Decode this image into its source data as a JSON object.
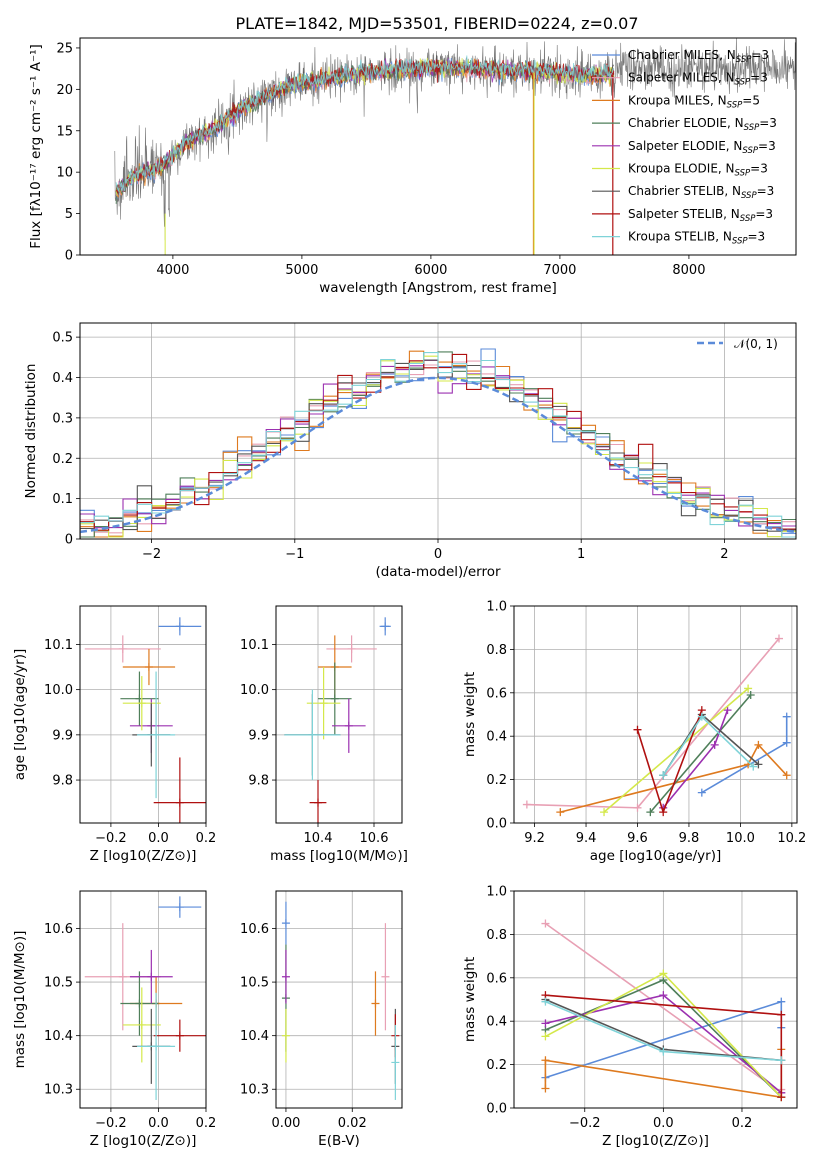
{
  "figure_title": "PLATE=1842, MJD=53501, FIBERID=0224, z=0.07",
  "models": [
    {
      "name": "Chabrier MILES, N$_{SSP}$=3",
      "label": "Chabrier MILES, N",
      "sub": "SSP",
      "suffix": "=3",
      "color": "#5b8bd9"
    },
    {
      "name": "Salpeter MILES",
      "label": "Salpeter MILES, N",
      "sub": "SSP",
      "suffix": "=3",
      "color": "#e8a0b4"
    },
    {
      "name": "Kroupa MILES",
      "label": "Kroupa MILES, N",
      "sub": "SSP",
      "suffix": "=5",
      "color": "#de7a1f"
    },
    {
      "name": "Chabrier ELODIE",
      "label": "Chabrier ELODIE, N",
      "sub": "SSP",
      "suffix": "=3",
      "color": "#4f7f5a"
    },
    {
      "name": "Salpeter ELODIE",
      "label": "Salpeter ELODIE, N",
      "sub": "SSP",
      "suffix": "=3",
      "color": "#9b30b0"
    },
    {
      "name": "Kroupa ELODIE",
      "label": "Kroupa ELODIE, N",
      "sub": "SSP",
      "suffix": "=3",
      "color": "#d4e84a"
    },
    {
      "name": "Chabrier STELIB",
      "label": "Chabrier STELIB, N",
      "sub": "SSP",
      "suffix": "=3",
      "color": "#555555"
    },
    {
      "name": "Salpeter STELIB",
      "label": "Salpeter STELIB, N",
      "sub": "SSP",
      "suffix": "=3",
      "color": "#b01010"
    },
    {
      "name": "Kroupa STELIB",
      "label": "Kroupa STELIB, N",
      "sub": "SSP",
      "suffix": "=3",
      "color": "#7fd3d8"
    }
  ],
  "chart_data": [
    {
      "type": "line",
      "id": "spectrum",
      "title": "PLATE=1842, MJD=53501, FIBERID=0224, z=0.07",
      "xlabel": "wavelength [Angstrom, rest frame]",
      "ylabel": "Flux [fλ10⁻¹⁷ erg cm⁻² s⁻¹ A⁻¹]",
      "xlim": [
        3280,
        8830
      ],
      "ylim": [
        0,
        26.2
      ],
      "xticks": [
        4000,
        5000,
        6000,
        7000,
        8000
      ],
      "yticks": [
        0,
        5,
        10,
        15,
        20,
        25
      ],
      "grid": false,
      "legend_position": "top-right",
      "continuum_x": [
        3550,
        3700,
        3900,
        4100,
        4300,
        4500,
        4700,
        4900,
        5100,
        5300,
        5500,
        5700,
        5900,
        6100,
        6300,
        6500,
        6700,
        6900,
        7100,
        7300,
        7500
      ],
      "continuum_y": [
        7.5,
        9.5,
        10.5,
        13.5,
        15,
        17.5,
        19,
        20.5,
        21,
        21.5,
        22,
        22.3,
        22.5,
        22.6,
        22.5,
        22.3,
        22.2,
        22.1,
        21.8,
        21.6,
        22.5
      ],
      "data_xrange": [
        3550,
        8830
      ]
    },
    {
      "type": "bar",
      "id": "residuals",
      "xlabel": "(data-model)/error",
      "ylabel": "Normed distribution",
      "xlim": [
        -2.5,
        2.5
      ],
      "ylim": [
        0,
        0.535
      ],
      "xticks": [
        -2,
        -1,
        0,
        1,
        2
      ],
      "yticks": [
        0.0,
        0.1,
        0.2,
        0.3,
        0.4,
        0.5
      ],
      "grid": true,
      "legend_position": "top-right",
      "reference_curve": {
        "name": "N(0,1)",
        "color": "#5b8bd9"
      },
      "bin_width": 0.1
    },
    {
      "type": "scatter",
      "id": "age-vs-Z",
      "xlabel": "Z [log10(Z/Z⊙)]",
      "ylabel": "age [log10(age/yr)]",
      "xlim": [
        -0.33,
        0.2
      ],
      "ylim": [
        9.705,
        10.185
      ],
      "xticks": [
        -0.2,
        0.0,
        0.2
      ],
      "yticks": [
        9.8,
        9.9,
        10.0,
        10.1
      ],
      "grid": true,
      "points": [
        {
          "x": 0.09,
          "y": 10.14,
          "xerr": 0.09,
          "yerr": 0.02,
          "c": 0
        },
        {
          "x": -0.15,
          "y": 10.09,
          "xerr": 0.16,
          "yerr": 0.03,
          "c": 1
        },
        {
          "x": -0.04,
          "y": 10.05,
          "xerr": 0.11,
          "yerr": 0.04,
          "c": 2
        },
        {
          "x": -0.08,
          "y": 9.98,
          "xerr": 0.08,
          "yerr": 0.06,
          "c": 3
        },
        {
          "x": -0.03,
          "y": 9.92,
          "xerr": 0.09,
          "yerr": 0.06,
          "c": 4
        },
        {
          "x": -0.07,
          "y": 9.97,
          "xerr": 0.08,
          "yerr": 0.06,
          "c": 5
        },
        {
          "x": -0.03,
          "y": 9.9,
          "xerr": 0.08,
          "yerr": 0.07,
          "c": 6
        },
        {
          "x": 0.09,
          "y": 9.75,
          "xerr": 0.11,
          "yerr": 0.1,
          "c": 7
        },
        {
          "x": -0.01,
          "y": 9.9,
          "xerr": 0.08,
          "yerr": 0.14,
          "c": 8
        }
      ]
    },
    {
      "type": "scatter",
      "id": "age-vs-mass",
      "xlabel": "mass [log10(M/M⊙)]",
      "ylabel": "",
      "xlim": [
        10.25,
        10.7
      ],
      "ylim": [
        9.705,
        10.185
      ],
      "xticks": [
        10.4,
        10.6
      ],
      "yticks": [
        9.8,
        9.9,
        10.0,
        10.1
      ],
      "grid": true,
      "points": [
        {
          "x": 10.64,
          "y": 10.14,
          "xerr": 0.02,
          "yerr": 0.02,
          "c": 0
        },
        {
          "x": 10.52,
          "y": 10.09,
          "xerr": 0.09,
          "yerr": 0.03,
          "c": 1
        },
        {
          "x": 10.46,
          "y": 10.05,
          "xerr": 0.06,
          "yerr": 0.07,
          "c": 2
        },
        {
          "x": 10.46,
          "y": 9.98,
          "xerr": 0.06,
          "yerr": 0.08,
          "c": 3
        },
        {
          "x": 10.51,
          "y": 9.92,
          "xerr": 0.06,
          "yerr": 0.06,
          "c": 4
        },
        {
          "x": 10.42,
          "y": 9.97,
          "xerr": 0.06,
          "yerr": 0.08,
          "c": 5
        },
        {
          "x": 10.38,
          "y": 9.9,
          "xerr": 0.1,
          "yerr": 0.09,
          "c": 6
        },
        {
          "x": 10.4,
          "y": 9.75,
          "xerr": 0.03,
          "yerr": 0.05,
          "c": 7
        },
        {
          "x": 10.38,
          "y": 9.9,
          "xerr": 0.1,
          "yerr": 0.1,
          "c": 8
        }
      ]
    },
    {
      "type": "line",
      "id": "mass-weight-vs-age",
      "xlabel": "age [log10(age/yr)]",
      "ylabel": "mass weight",
      "xlim": [
        9.12,
        10.22
      ],
      "ylim": [
        0,
        1.0
      ],
      "xticks": [
        9.2,
        9.4,
        9.6,
        9.8,
        10.0,
        10.2
      ],
      "yticks": [
        0.0,
        0.2,
        0.4,
        0.6,
        0.8,
        1.0
      ],
      "grid": true,
      "series": [
        {
          "c": 0,
          "x": [
            9.85,
            10.18,
            10.18
          ],
          "y": [
            0.14,
            0.37,
            0.49
          ]
        },
        {
          "c": 1,
          "x": [
            9.17,
            9.6,
            10.15
          ],
          "y": [
            0.085,
            0.07,
            0.85
          ]
        },
        {
          "c": 2,
          "x": [
            9.3,
            10.03,
            10.07,
            10.18
          ],
          "y": [
            0.05,
            0.27,
            0.36,
            0.22
          ]
        },
        {
          "c": 3,
          "x": [
            9.65,
            10.04
          ],
          "y": [
            0.05,
            0.59
          ]
        },
        {
          "c": 4,
          "x": [
            9.7,
            9.9,
            9.95
          ],
          "y": [
            0.07,
            0.36,
            0.52
          ]
        },
        {
          "c": 5,
          "x": [
            9.47,
            10.03
          ],
          "y": [
            0.05,
            0.62
          ]
        },
        {
          "c": 6,
          "x": [
            9.7,
            9.85,
            10.07
          ],
          "y": [
            0.22,
            0.5,
            0.27
          ]
        },
        {
          "c": 7,
          "x": [
            9.6,
            9.7,
            9.85
          ],
          "y": [
            0.43,
            0.05,
            0.52
          ]
        },
        {
          "c": 8,
          "x": [
            9.7,
            9.85,
            10.05
          ],
          "y": [
            0.22,
            0.49,
            0.26
          ]
        }
      ]
    },
    {
      "type": "scatter",
      "id": "mass-vs-Z",
      "xlabel": "Z [log10(Z/Z⊙)]",
      "ylabel": "mass [log10(M/M⊙)]",
      "xlim": [
        -0.33,
        0.2
      ],
      "ylim": [
        10.265,
        10.67
      ],
      "xticks": [
        -0.2,
        0.0,
        0.2
      ],
      "yticks": [
        10.3,
        10.4,
        10.5,
        10.6
      ],
      "grid": true,
      "points": [
        {
          "x": 0.09,
          "y": 10.64,
          "xerr": 0.09,
          "yerr": 0.02,
          "c": 0
        },
        {
          "x": -0.15,
          "y": 10.51,
          "xerr": 0.16,
          "yerr": 0.1,
          "c": 1
        },
        {
          "x": -0.01,
          "y": 10.46,
          "xerr": 0.11,
          "yerr": 0.05,
          "c": 2
        },
        {
          "x": -0.08,
          "y": 10.46,
          "xerr": 0.08,
          "yerr": 0.06,
          "c": 3
        },
        {
          "x": -0.03,
          "y": 10.51,
          "xerr": 0.09,
          "yerr": 0.05,
          "c": 4
        },
        {
          "x": -0.07,
          "y": 10.42,
          "xerr": 0.08,
          "yerr": 0.07,
          "c": 5
        },
        {
          "x": -0.03,
          "y": 10.38,
          "xerr": 0.08,
          "yerr": 0.07,
          "c": 6
        },
        {
          "x": 0.09,
          "y": 10.4,
          "xerr": 0.11,
          "yerr": 0.03,
          "c": 7
        },
        {
          "x": -0.01,
          "y": 10.38,
          "xerr": 0.08,
          "yerr": 0.1,
          "c": 8
        }
      ]
    },
    {
      "type": "scatter",
      "id": "mass-vs-ebv",
      "xlabel": "E(B-V)",
      "ylabel": "",
      "xlim": [
        -0.003,
        0.035
      ],
      "ylim": [
        10.265,
        10.67
      ],
      "xticks": [
        0.0,
        0.02
      ],
      "yticks": [
        10.3,
        10.4,
        10.5,
        10.6
      ],
      "grid": true,
      "points": [
        {
          "x": 0.0,
          "y": 10.61,
          "xerr": 0.0,
          "yerr": 0.04,
          "c": 0
        },
        {
          "x": 0.03,
          "y": 10.51,
          "xerr": 0.0,
          "yerr": 0.1,
          "c": 1
        },
        {
          "x": 0.027,
          "y": 10.46,
          "xerr": 0.0,
          "yerr": 0.06,
          "c": 2
        },
        {
          "x": 0.0,
          "y": 10.47,
          "xerr": 0.0,
          "yerr": 0.1,
          "c": 3
        },
        {
          "x": 0.0,
          "y": 10.51,
          "xerr": 0.0,
          "yerr": 0.05,
          "c": 4
        },
        {
          "x": 0.0,
          "y": 10.4,
          "xerr": 0.0,
          "yerr": 0.05,
          "c": 5
        },
        {
          "x": 0.033,
          "y": 10.38,
          "xerr": 0.0,
          "yerr": 0.07,
          "c": 6
        },
        {
          "x": 0.033,
          "y": 10.4,
          "xerr": 0.0,
          "yerr": 0.04,
          "c": 7
        },
        {
          "x": 0.033,
          "y": 10.35,
          "xerr": 0.0,
          "yerr": 0.07,
          "c": 8
        }
      ]
    },
    {
      "type": "line",
      "id": "mass-weight-vs-Z",
      "xlabel": "Z [log10(Z/Z⊙)]",
      "ylabel": "mass weight",
      "xlim": [
        -0.38,
        0.34
      ],
      "ylim": [
        0,
        1.0
      ],
      "xticks": [
        -0.2,
        0.0,
        0.2
      ],
      "yticks": [
        0.0,
        0.2,
        0.4,
        0.6,
        0.8,
        1.0
      ],
      "grid": true,
      "series": [
        {
          "c": 0,
          "x": [
            -0.3,
            0.3,
            0.3
          ],
          "y": [
            0.14,
            0.49,
            0.37
          ]
        },
        {
          "c": 1,
          "x": [
            -0.3,
            0.3,
            0.3
          ],
          "y": [
            0.85,
            0.07,
            0.085
          ]
        },
        {
          "c": 2,
          "x": [
            -0.3,
            -0.3,
            0.3,
            0.3
          ],
          "y": [
            0.09,
            0.22,
            0.05,
            0.27
          ]
        },
        {
          "c": 3,
          "x": [
            -0.3,
            0.0,
            0.3
          ],
          "y": [
            0.36,
            0.59,
            0.05
          ]
        },
        {
          "c": 4,
          "x": [
            -0.3,
            0.0,
            0.3
          ],
          "y": [
            0.39,
            0.52,
            0.07
          ]
        },
        {
          "c": 5,
          "x": [
            -0.3,
            0.0,
            0.3
          ],
          "y": [
            0.33,
            0.62,
            0.05
          ]
        },
        {
          "c": 6,
          "x": [
            -0.3,
            0.0,
            0.3
          ],
          "y": [
            0.5,
            0.27,
            0.22
          ]
        },
        {
          "c": 7,
          "x": [
            -0.3,
            0.3,
            0.3
          ],
          "y": [
            0.52,
            0.43,
            0.05
          ]
        },
        {
          "c": 8,
          "x": [
            -0.3,
            0.0,
            0.3
          ],
          "y": [
            0.49,
            0.26,
            0.22
          ]
        }
      ]
    }
  ]
}
